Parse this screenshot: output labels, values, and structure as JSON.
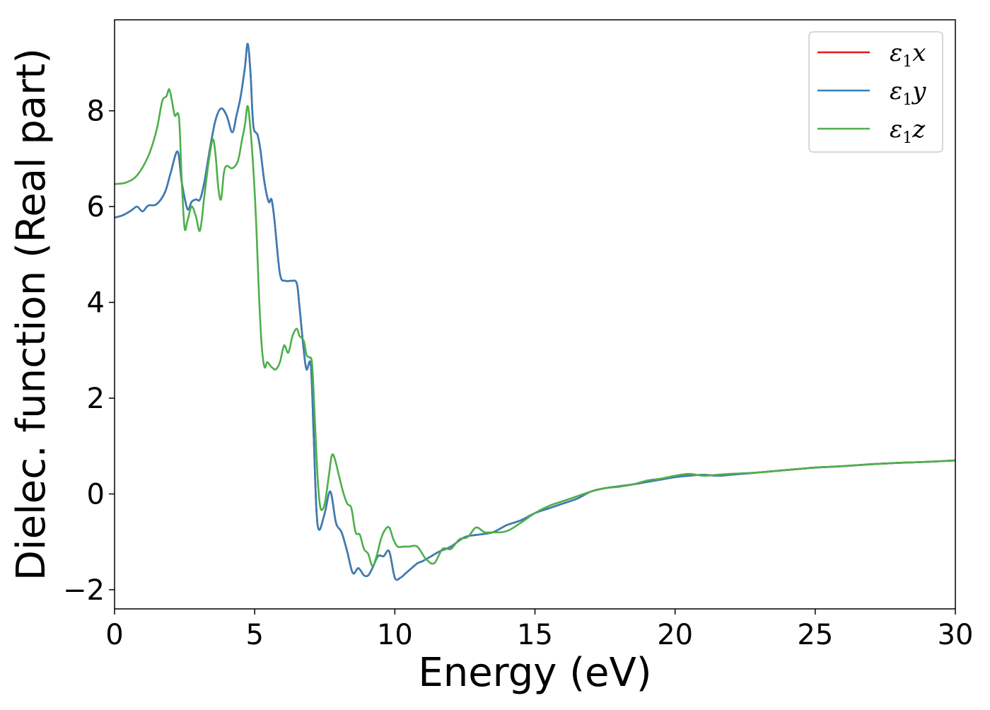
{
  "chart_data": {
    "type": "line",
    "title": "",
    "xlabel": "Energy (eV)",
    "ylabel": "Dielec. function (Real part)",
    "xlim": [
      0,
      30
    ],
    "ylim": [
      -2.4,
      9.9
    ],
    "xticks": [
      0,
      5,
      10,
      15,
      20,
      25,
      30
    ],
    "yticks": [
      -2,
      0,
      2,
      4,
      6,
      8
    ],
    "xtick_labels": [
      "0",
      "5",
      "10",
      "15",
      "20",
      "25",
      "30"
    ],
    "ytick_labels": [
      "−2",
      "0",
      "2",
      "4",
      "6",
      "8"
    ],
    "grid": false,
    "legend_position": "top-right",
    "series": [
      {
        "name": "ε",
        "sub": "1",
        "comp": "x",
        "color": "#e41a1c",
        "x": [
          0,
          0.3,
          0.6,
          0.8,
          1.0,
          1.2,
          1.5,
          1.8,
          2.0,
          2.25,
          2.4,
          2.6,
          2.75,
          2.9,
          3.05,
          3.2,
          3.4,
          3.6,
          3.8,
          4.0,
          4.2,
          4.35,
          4.5,
          4.65,
          4.75,
          4.85,
          4.95,
          5.1,
          5.2,
          5.35,
          5.5,
          5.6,
          5.7,
          5.9,
          6.1,
          6.3,
          6.5,
          6.6,
          6.75,
          6.85,
          7.0,
          7.1,
          7.2,
          7.3,
          7.5,
          7.7,
          7.9,
          8.1,
          8.3,
          8.5,
          8.7,
          8.9,
          9.05,
          9.2,
          9.4,
          9.6,
          9.8,
          10.0,
          10.2,
          10.4,
          10.6,
          10.8,
          11.0,
          11.3,
          11.6,
          12.0,
          12.5,
          13.0,
          13.5,
          14.0,
          14.5,
          15.0,
          15.5,
          16.0,
          16.5,
          17.0,
          17.5,
          18.0,
          18.5,
          19.0,
          19.5,
          20.0,
          20.5,
          21.0,
          21.5,
          22.0,
          23.0,
          24.0,
          25.0,
          26.0,
          27.0,
          28.0,
          29.0,
          30.0
        ],
        "values": [
          5.77,
          5.82,
          5.92,
          6.0,
          5.9,
          6.02,
          6.05,
          6.3,
          6.7,
          7.15,
          6.5,
          5.95,
          6.1,
          6.15,
          6.15,
          6.5,
          7.2,
          7.8,
          8.05,
          7.9,
          7.55,
          7.9,
          8.3,
          8.9,
          9.4,
          8.8,
          7.7,
          7.5,
          7.2,
          6.5,
          6.1,
          6.15,
          5.75,
          4.6,
          4.45,
          4.45,
          4.4,
          3.9,
          3.0,
          2.6,
          2.7,
          1.3,
          -0.3,
          -0.75,
          -0.4,
          0.05,
          -0.6,
          -0.8,
          -1.2,
          -1.65,
          -1.55,
          -1.7,
          -1.7,
          -1.55,
          -1.3,
          -1.3,
          -1.2,
          -1.75,
          -1.75,
          -1.65,
          -1.55,
          -1.45,
          -1.4,
          -1.3,
          -1.2,
          -1.1,
          -0.9,
          -0.85,
          -0.8,
          -0.65,
          -0.55,
          -0.4,
          -0.3,
          -0.2,
          -0.1,
          0.05,
          0.12,
          0.16,
          0.2,
          0.25,
          0.3,
          0.35,
          0.38,
          0.4,
          0.38,
          0.4,
          0.45,
          0.5,
          0.55,
          0.58,
          0.62,
          0.65,
          0.67,
          0.7
        ]
      },
      {
        "name": "ε",
        "sub": "1",
        "comp": "y",
        "color": "#377eb8",
        "x": [
          0,
          0.3,
          0.6,
          0.8,
          1.0,
          1.2,
          1.5,
          1.8,
          2.0,
          2.25,
          2.4,
          2.6,
          2.75,
          2.9,
          3.05,
          3.2,
          3.4,
          3.6,
          3.8,
          4.0,
          4.2,
          4.35,
          4.5,
          4.65,
          4.75,
          4.85,
          4.95,
          5.1,
          5.2,
          5.35,
          5.5,
          5.6,
          5.7,
          5.9,
          6.1,
          6.3,
          6.5,
          6.6,
          6.75,
          6.85,
          7.0,
          7.1,
          7.2,
          7.3,
          7.5,
          7.7,
          7.9,
          8.1,
          8.3,
          8.5,
          8.7,
          8.9,
          9.05,
          9.2,
          9.4,
          9.6,
          9.8,
          10.0,
          10.2,
          10.4,
          10.6,
          10.8,
          11.0,
          11.3,
          11.6,
          12.0,
          12.5,
          13.0,
          13.5,
          14.0,
          14.5,
          15.0,
          15.5,
          16.0,
          16.5,
          17.0,
          17.5,
          18.0,
          18.5,
          19.0,
          19.5,
          20.0,
          20.5,
          21.0,
          21.5,
          22.0,
          23.0,
          24.0,
          25.0,
          26.0,
          27.0,
          28.0,
          29.0,
          30.0
        ],
        "values": [
          5.77,
          5.82,
          5.92,
          6.0,
          5.9,
          6.02,
          6.05,
          6.3,
          6.7,
          7.15,
          6.5,
          5.95,
          6.1,
          6.15,
          6.15,
          6.5,
          7.2,
          7.8,
          8.05,
          7.9,
          7.55,
          7.9,
          8.3,
          8.9,
          9.4,
          8.8,
          7.7,
          7.5,
          7.2,
          6.5,
          6.1,
          6.15,
          5.75,
          4.6,
          4.45,
          4.45,
          4.4,
          3.9,
          3.0,
          2.6,
          2.7,
          1.3,
          -0.3,
          -0.75,
          -0.4,
          0.05,
          -0.6,
          -0.8,
          -1.2,
          -1.65,
          -1.55,
          -1.7,
          -1.7,
          -1.55,
          -1.3,
          -1.3,
          -1.2,
          -1.75,
          -1.75,
          -1.65,
          -1.55,
          -1.45,
          -1.4,
          -1.3,
          -1.2,
          -1.1,
          -0.9,
          -0.85,
          -0.8,
          -0.65,
          -0.55,
          -0.4,
          -0.3,
          -0.2,
          -0.1,
          0.05,
          0.12,
          0.16,
          0.2,
          0.25,
          0.3,
          0.35,
          0.38,
          0.4,
          0.38,
          0.4,
          0.45,
          0.5,
          0.55,
          0.58,
          0.62,
          0.65,
          0.67,
          0.7
        ]
      },
      {
        "name": "ε",
        "sub": "1",
        "comp": "z",
        "color": "#4daf4a",
        "x": [
          0,
          0.4,
          0.8,
          1.2,
          1.5,
          1.7,
          1.85,
          1.95,
          2.05,
          2.15,
          2.3,
          2.4,
          2.5,
          2.6,
          2.75,
          2.9,
          3.05,
          3.2,
          3.35,
          3.5,
          3.6,
          3.7,
          3.8,
          3.9,
          4.0,
          4.2,
          4.4,
          4.55,
          4.65,
          4.75,
          4.85,
          4.95,
          5.05,
          5.15,
          5.25,
          5.35,
          5.45,
          5.6,
          5.75,
          5.9,
          6.05,
          6.2,
          6.35,
          6.5,
          6.6,
          6.75,
          6.85,
          6.95,
          7.05,
          7.15,
          7.25,
          7.35,
          7.5,
          7.65,
          7.75,
          7.85,
          8.0,
          8.15,
          8.3,
          8.45,
          8.6,
          8.75,
          8.9,
          9.05,
          9.2,
          9.35,
          9.5,
          9.65,
          9.8,
          9.95,
          10.1,
          10.3,
          10.5,
          10.8,
          11.1,
          11.4,
          11.7,
          12.0,
          12.3,
          12.6,
          12.9,
          13.2,
          13.5,
          13.8,
          14.1,
          14.5,
          15.0,
          15.5,
          16.0,
          16.5,
          17.0,
          17.5,
          18.0,
          18.5,
          19.0,
          19.5,
          20.0,
          20.5,
          21.0,
          21.5,
          22.0,
          23.0,
          24.0,
          25.0,
          26.0,
          27.0,
          28.0,
          29.0,
          30.0
        ],
        "values": [
          6.47,
          6.5,
          6.65,
          7.05,
          7.6,
          8.2,
          8.3,
          8.45,
          8.2,
          7.9,
          7.85,
          6.5,
          5.55,
          5.7,
          6.0,
          5.8,
          5.5,
          6.2,
          6.9,
          7.4,
          7.1,
          6.4,
          6.15,
          6.7,
          6.85,
          6.8,
          6.95,
          7.4,
          7.7,
          8.1,
          7.6,
          6.8,
          5.7,
          4.2,
          3.1,
          2.65,
          2.75,
          2.65,
          2.6,
          2.75,
          3.1,
          2.95,
          3.3,
          3.45,
          3.3,
          3.2,
          2.9,
          2.85,
          2.7,
          1.5,
          0.3,
          -0.3,
          -0.2,
          0.4,
          0.8,
          0.75,
          0.4,
          0.05,
          -0.2,
          -0.3,
          -0.8,
          -0.85,
          -1.15,
          -1.25,
          -1.5,
          -1.3,
          -0.95,
          -0.75,
          -0.7,
          -0.95,
          -1.1,
          -1.1,
          -1.1,
          -1.1,
          -1.35,
          -1.45,
          -1.15,
          -1.15,
          -0.95,
          -0.9,
          -0.7,
          -0.8,
          -0.8,
          -0.8,
          -0.75,
          -0.6,
          -0.4,
          -0.25,
          -0.15,
          -0.05,
          0.05,
          0.12,
          0.15,
          0.2,
          0.28,
          0.32,
          0.38,
          0.42,
          0.38,
          0.4,
          0.42,
          0.45,
          0.5,
          0.55,
          0.58,
          0.62,
          0.65,
          0.67,
          0.7
        ]
      }
    ]
  }
}
